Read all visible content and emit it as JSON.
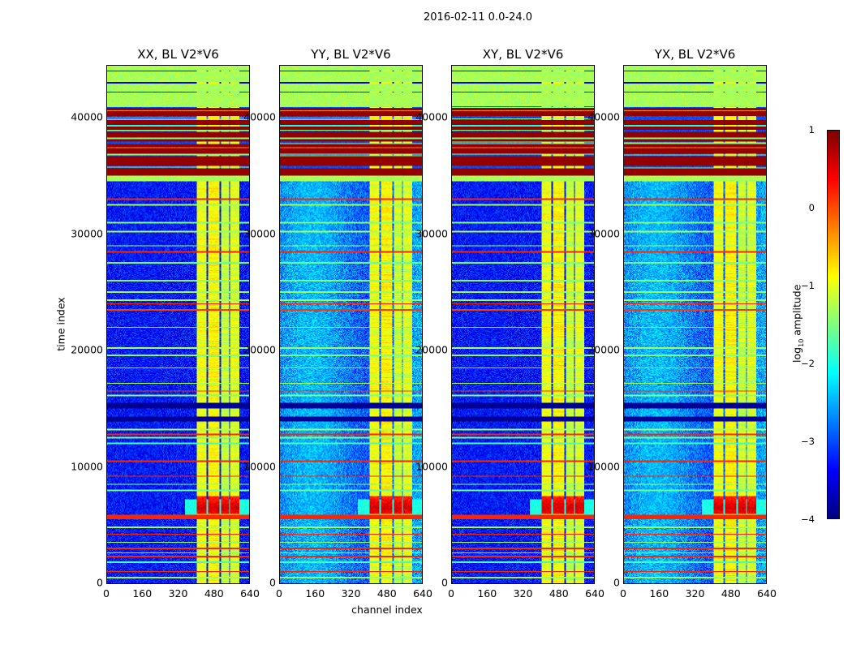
{
  "chart_data": {
    "type": "heatmap",
    "title": "2016-02-11 0.0-24.0",
    "xlabel": "channel index",
    "ylabel": "time index",
    "xlim": [
      0,
      640
    ],
    "ylim": [
      0,
      44460
    ],
    "xticks": [
      "0",
      "160",
      "320",
      "480",
      "640"
    ],
    "xtick_values": [
      0,
      160,
      320,
      480,
      640
    ],
    "yticks": [
      "0",
      "10000",
      "20000",
      "30000",
      "40000"
    ],
    "ytick_values": [
      0,
      10000,
      20000,
      30000,
      40000
    ],
    "panels": [
      {
        "title": "XX, BL V2*V6",
        "background": -3.3
      },
      {
        "title": "YY, BL V2*V6",
        "background": -2.7
      },
      {
        "title": "XY, BL V2*V6",
        "background": -3.3
      },
      {
        "title": "YX, BL V2*V6",
        "background": -2.7
      }
    ],
    "colorbar": {
      "label_prefix": "log",
      "label_sub": "10",
      "label_suffix": " amplitude",
      "range": [
        -4,
        1
      ],
      "ticks": [
        "1",
        "0",
        "−1",
        "−2",
        "−3",
        "−4"
      ],
      "tick_values": [
        1,
        0,
        -1,
        -2,
        -3,
        -4
      ],
      "colormap": "jet"
    },
    "features": {
      "time_blocks": [
        {
          "t": [
            41000,
            44460
          ],
          "value": -1.3
        },
        {
          "t": [
            35000,
            41000
          ],
          "value": 0.9
        },
        {
          "t": [
            34500,
            35000
          ],
          "value": -1.3
        },
        {
          "t": [
            15000,
            15500
          ],
          "value": -3.9
        },
        {
          "t": [
            13900,
            14300
          ],
          "value": -3.9
        },
        {
          "t": [
            5500,
            5900
          ],
          "value": 0.2
        }
      ],
      "time_lines": [
        {
          "t": 44000,
          "value": -3.5
        },
        {
          "t": 43000,
          "value": -3.5
        },
        {
          "t": 42200,
          "value": -3.2
        },
        {
          "t": 40600,
          "value": -0.3
        },
        {
          "t": 40100,
          "value": -3.0
        },
        {
          "t": 39300,
          "value": -2.0
        },
        {
          "t": 38800,
          "value": -3.0
        },
        {
          "t": 38200,
          "value": -1.5
        },
        {
          "t": 37400,
          "value": -0.3
        },
        {
          "t": 33000,
          "value": 0.2
        },
        {
          "t": 32500,
          "value": -1.3
        },
        {
          "t": 31000,
          "value": -1.5
        },
        {
          "t": 30200,
          "value": -1.3
        },
        {
          "t": 29000,
          "value": -1.4
        },
        {
          "t": 28500,
          "value": 0.2
        },
        {
          "t": 27500,
          "value": -1.6
        },
        {
          "t": 26000,
          "value": -1.5
        },
        {
          "t": 25000,
          "value": -1.4
        },
        {
          "t": 24300,
          "value": -1.3
        },
        {
          "t": 24000,
          "value": 0.2
        },
        {
          "t": 23500,
          "value": 0.1
        },
        {
          "t": 22000,
          "value": -1.6
        },
        {
          "t": 20200,
          "value": -1.3
        },
        {
          "t": 19600,
          "value": -1.5
        },
        {
          "t": 18500,
          "value": -1.4
        },
        {
          "t": 17200,
          "value": -1.3
        },
        {
          "t": 16500,
          "value": 0.1
        },
        {
          "t": 16100,
          "value": -1.5
        },
        {
          "t": 13200,
          "value": -1.3
        },
        {
          "t": 12800,
          "value": 0.2
        },
        {
          "t": 12500,
          "value": -1.5
        },
        {
          "t": 12000,
          "value": -1.8
        },
        {
          "t": 10500,
          "value": 0.2
        },
        {
          "t": 9200,
          "value": 0.2
        },
        {
          "t": 8500,
          "value": -1.4
        },
        {
          "t": 8000,
          "value": -1.6
        },
        {
          "t": 4800,
          "value": -1.3
        },
        {
          "t": 4200,
          "value": 0.2
        },
        {
          "t": 3500,
          "value": -1.4
        },
        {
          "t": 3000,
          "value": 0.2
        },
        {
          "t": 2600,
          "value": -1.3
        },
        {
          "t": 2300,
          "value": 0.2
        },
        {
          "t": 1800,
          "value": -1.8
        },
        {
          "t": 1000,
          "value": 0.2
        },
        {
          "t": 500,
          "value": -1.4
        }
      ],
      "channel_bands": [
        {
          "ch": [
            405,
            450
          ],
          "value": -0.95
        },
        {
          "ch": [
            456,
            505
          ],
          "value": -0.85
        },
        {
          "ch": [
            512,
            548
          ],
          "value": -1.15
        },
        {
          "ch": [
            553,
            597
          ],
          "value": -1.05
        }
      ],
      "burst": {
        "t": [
          6000,
          7500
        ],
        "value": 0.6
      }
    }
  }
}
